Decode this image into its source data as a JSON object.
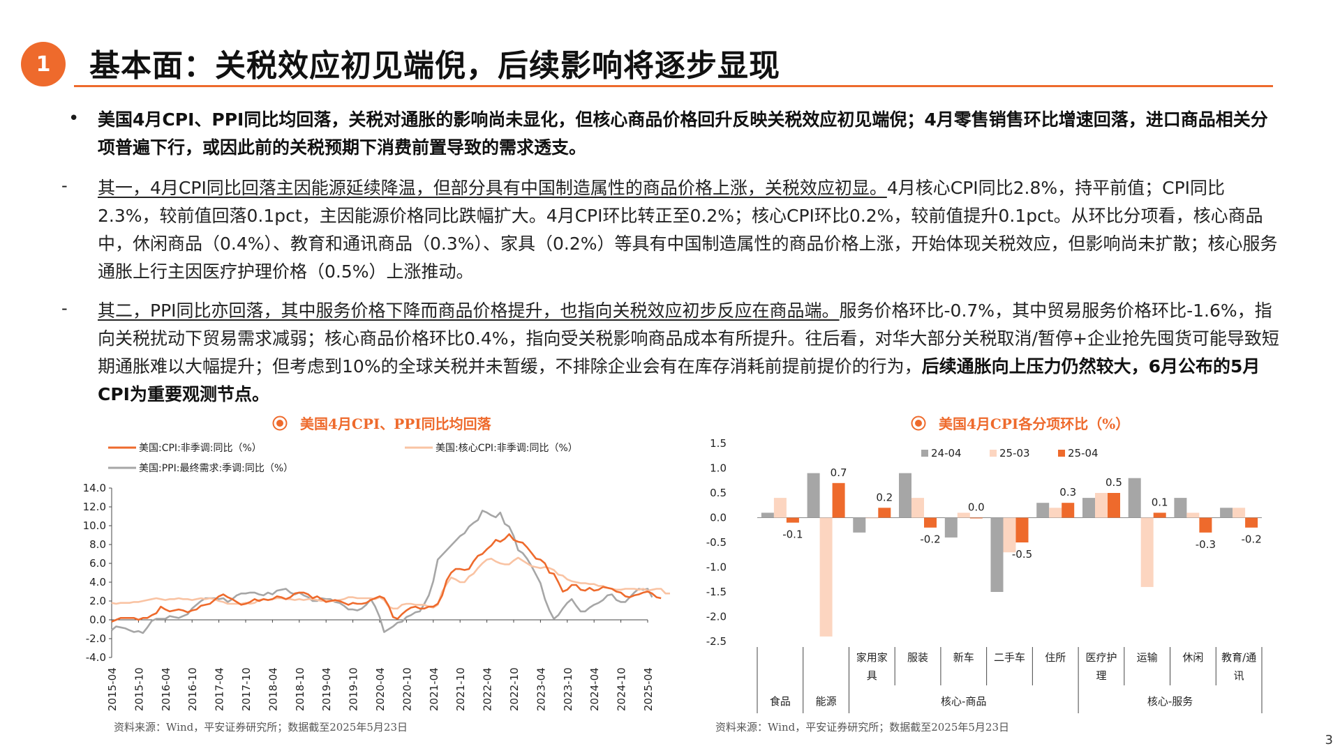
{
  "header": {
    "badge": "1",
    "title": "基本面：关税效应初见端倪，后续影响将逐步显现"
  },
  "bullets": {
    "main": {
      "symbol": "•",
      "text": "美国4月CPI、PPI同比均回落，关税对通胀的影响尚未显化，但核心商品价格回升反映关税效应初见端倪；4月零售销售环比增速回落，进口商品相关分项普遍下行，或因此前的关税预期下消费前置导致的需求透支。"
    },
    "sub1": {
      "symbol": "-",
      "lead": "其一，4月CPI同比回落主因能源延续降温，但部分具有中国制造属性的商品价格上涨，关税效应初显。",
      "text": "4月核心CPI同比2.8%，持平前值；CPI同比2.3%，较前值回落0.1pct，主因能源价格同比跌幅扩大。4月CPI环比转正至0.2%；核心CPI环比0.2%，较前值提升0.1pct。从环比分项看，核心商品中，休闲商品（0.4%）、教育和通讯商品（0.3%）、家具（0.2%）等具有中国制造属性的商品价格上涨，开始体现关税效应，但影响尚未扩散；核心服务通胀上行主因医疗护理价格（0.5%）上涨推动。"
    },
    "sub2": {
      "symbol": "-",
      "lead": "其二，PPI同比亦回落，其中服务价格下降而商品价格提升，也指向关税效应初步反应在商品端。",
      "text": "服务价格环比-0.7%，其中贸易服务价格环比-1.6%，指向关税扰动下贸易需求减弱；核心商品价格环比0.4%，指向受关税影响商品成本有所提升。往后看，对华大部分关税取消/暂停+企业抢先囤货可能导致短期通胀难以大幅提升；但考虑到10%的全球关税并未暂缓，不排除企业会有在库存消耗前提前提价的行为，",
      "tail": "后续通胀向上压力仍然较大，6月公布的5月CPI为重要观测节点。"
    }
  },
  "chart_data": [
    {
      "type": "line",
      "title": "美国4月CPI、PPI同比均回落",
      "ylim": [
        -4.0,
        14.0
      ],
      "yticks": [
        "14.0",
        "12.0",
        "10.0",
        "8.0",
        "6.0",
        "4.0",
        "2.0",
        "0.0",
        "-2.0",
        "-4.0"
      ],
      "xticks": [
        "2015-04",
        "2015-10",
        "2016-04",
        "2016-10",
        "2017-04",
        "2017-10",
        "2018-04",
        "2018-10",
        "2019-04",
        "2019-10",
        "2020-04",
        "2020-10",
        "2021-04",
        "2021-10",
        "2022-04",
        "2022-10",
        "2023-04",
        "2023-10",
        "2024-04",
        "2024-10",
        "2025-04"
      ],
      "x_start": "2015-04",
      "series": [
        {
          "name": "美国:CPI:非季调:同比（%）",
          "color": "#ee6a2c",
          "values": [
            -0.2,
            0.0,
            0.2,
            0.2,
            0.2,
            0.2,
            0.0,
            0.2,
            0.2,
            0.5,
            0.7,
            1.4,
            1.1,
            0.9,
            1.0,
            1.1,
            1.0,
            0.8,
            1.0,
            1.1,
            1.5,
            1.6,
            1.7,
            2.1,
            2.5,
            2.7,
            2.4,
            2.2,
            1.9,
            1.6,
            1.7,
            1.9,
            2.2,
            2.0,
            2.2,
            2.1,
            2.2,
            2.5,
            2.4,
            2.2,
            2.4,
            2.8,
            2.9,
            2.9,
            2.7,
            2.3,
            2.5,
            2.2,
            1.9,
            2.0,
            2.1,
            2.0,
            1.8,
            1.6,
            1.8,
            1.7,
            1.7,
            1.8,
            2.1,
            2.3,
            2.5,
            2.3,
            1.5,
            0.3,
            0.1,
            0.6,
            1.0,
            1.3,
            1.4,
            1.2,
            1.2,
            1.4,
            1.4,
            1.7,
            2.6,
            4.2,
            5.0,
            5.4,
            5.4,
            5.3,
            5.4,
            6.2,
            6.8,
            7.0,
            7.5,
            7.9,
            8.5,
            8.3,
            8.6,
            9.1,
            8.5,
            8.3,
            8.2,
            7.7,
            7.1,
            6.5,
            6.4,
            6.0,
            5.0,
            4.9,
            4.0,
            3.0,
            3.2,
            3.7,
            3.7,
            3.2,
            3.1,
            3.4,
            3.1,
            3.2,
            3.5,
            3.4,
            3.3,
            3.0,
            2.9,
            2.5,
            2.4,
            2.6,
            2.7,
            2.9,
            3.0,
            2.8,
            2.4,
            2.3
          ]
        },
        {
          "name": "美国:核心CPI:非季调:同比（%）",
          "color": "#f9c3a3",
          "values": [
            1.8,
            1.7,
            1.8,
            1.8,
            1.8,
            1.9,
            1.9,
            2.0,
            2.1,
            2.2,
            2.3,
            2.2,
            2.1,
            2.2,
            2.2,
            2.3,
            2.2,
            2.2,
            2.1,
            2.2,
            2.3,
            2.2,
            2.3,
            2.2,
            2.0,
            1.9,
            1.7,
            1.7,
            1.7,
            1.7,
            1.8,
            1.7,
            1.8,
            2.1,
            2.2,
            2.1,
            2.2,
            2.3,
            2.3,
            2.2,
            2.2,
            2.1,
            2.2,
            2.1,
            2.2,
            2.2,
            2.1,
            2.0,
            2.1,
            2.0,
            2.0,
            2.1,
            2.2,
            2.4,
            2.4,
            2.3,
            2.3,
            2.3,
            2.3,
            2.2,
            2.4,
            2.1,
            1.4,
            1.2,
            1.2,
            1.6,
            1.7,
            1.7,
            1.6,
            1.6,
            1.6,
            1.4,
            1.3,
            1.6,
            3.0,
            3.8,
            4.5,
            4.3,
            4.0,
            4.0,
            4.6,
            4.9,
            5.5,
            6.0,
            6.4,
            6.5,
            6.2,
            6.0,
            5.9,
            5.9,
            6.3,
            6.6,
            6.3,
            6.0,
            5.7,
            5.6,
            5.5,
            5.6,
            5.5,
            5.3,
            4.8,
            4.7,
            4.3,
            4.1,
            4.0,
            3.9,
            3.9,
            3.8,
            3.8,
            3.6,
            3.6,
            3.4,
            3.3,
            3.2,
            3.2,
            3.3,
            3.3,
            3.3,
            3.2,
            3.3,
            3.1,
            3.2,
            3.3,
            3.3,
            2.8,
            2.8
          ]
        },
        {
          "name": "美国:PPI:最终需求:季调:同比（%）",
          "color": "#a6a6a6",
          "values": [
            -1.1,
            -0.7,
            -0.8,
            -0.9,
            -1.1,
            -1.3,
            -1.2,
            -1.4,
            -0.8,
            -0.1,
            0.1,
            0.1,
            0.1,
            0.4,
            0.3,
            0.2,
            0.4,
            0.6,
            1.2,
            1.6,
            2.0,
            2.3,
            2.3,
            2.3,
            2.2,
            2.3,
            1.9,
            2.2,
            2.6,
            2.8,
            2.8,
            2.9,
            2.9,
            2.7,
            2.6,
            2.9,
            2.7,
            3.1,
            3.2,
            3.3,
            2.9,
            2.7,
            2.9,
            2.6,
            2.4,
            2.0,
            2.0,
            2.3,
            2.2,
            2.2,
            1.9,
            1.8,
            1.5,
            1.1,
            1.1,
            1.0,
            1.2,
            1.6,
            2.2,
            1.4,
            0.3,
            -1.3,
            -1.0,
            -0.7,
            -0.3,
            -0.2,
            0.3,
            0.5,
            0.8,
            0.9,
            1.7,
            2.6,
            4.1,
            6.4,
            6.9,
            7.4,
            7.9,
            8.4,
            8.9,
            9.2,
            9.9,
            10.3,
            10.6,
            11.6,
            11.4,
            11.1,
            10.9,
            11.4,
            10.2,
            9.9,
            8.9,
            7.4,
            7.1,
            6.5,
            5.7,
            4.8,
            3.9,
            2.2,
            1.0,
            0.1,
            0.5,
            1.2,
            1.8,
            2.2,
            1.5,
            0.9,
            0.9,
            1.3,
            1.6,
            1.8,
            2.1,
            2.6,
            2.7,
            2.1,
            1.9,
            1.9,
            2.4,
            2.9,
            3.3,
            3.2,
            3.3,
            2.4
          ]
        }
      ]
    },
    {
      "type": "bar",
      "title": "美国4月CPI各分项环比（%）",
      "ylim": [
        -2.5,
        1.5
      ],
      "yticks": [
        "1.5",
        "1.0",
        "0.5",
        "0.0",
        "-0.5",
        "-1.0",
        "-1.5",
        "-2.0",
        "-2.5"
      ],
      "categories": [
        "食品",
        "能源",
        "家用家具",
        "服装",
        "新车",
        "二手车",
        "住所",
        "医疗护理",
        "运输",
        "休闲",
        "教育/通讯"
      ],
      "groups": [
        {
          "label": "核心-商品",
          "from": 2,
          "to": 6
        },
        {
          "label": "核心-服务",
          "from": 7,
          "to": 10
        }
      ],
      "series": [
        {
          "name": "24-04",
          "color": "#a6a6a6",
          "values": [
            0.1,
            0.9,
            -0.3,
            0.9,
            -0.4,
            -1.5,
            0.3,
            0.4,
            0.8,
            0.4,
            0.2
          ]
        },
        {
          "name": "25-03",
          "color": "#fcd5c0",
          "values": [
            0.4,
            -2.4,
            0.0,
            0.4,
            0.1,
            -0.7,
            0.2,
            0.5,
            -1.4,
            0.1,
            0.2
          ]
        },
        {
          "name": "25-04",
          "color": "#ee6a2c",
          "values": [
            -0.1,
            0.7,
            0.2,
            -0.2,
            0.0,
            -0.5,
            0.3,
            0.5,
            0.1,
            -0.3,
            -0.2
          ]
        }
      ],
      "data_labels": [
        "-0.1",
        "0.7",
        "0.2",
        "-0.2",
        "0.0",
        "-0.5",
        "0.3",
        "0.5",
        "0.1",
        "-0.3",
        "-0.2"
      ]
    }
  ],
  "source_left": "资料来源：Wind，平安证券研究所；数据截至2025年5月23日",
  "source_right": "资料来源：Wind，平安证券研究所；数据截至2025年5月23日",
  "page_number": "3"
}
